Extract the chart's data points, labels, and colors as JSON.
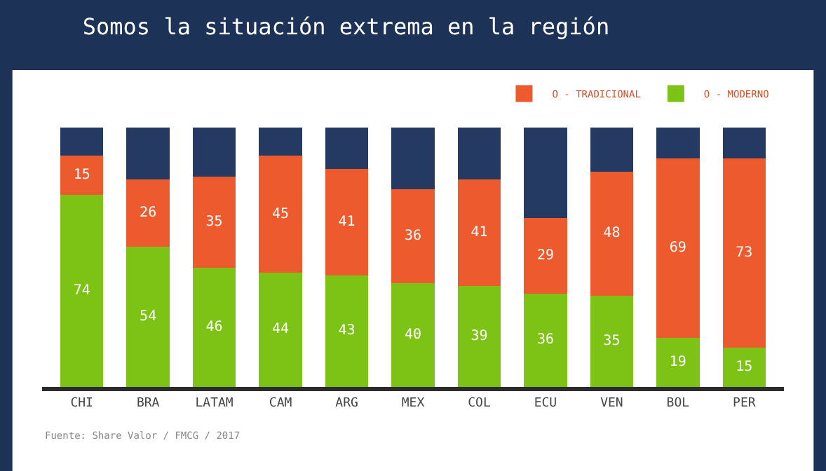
{
  "chart_data": {
    "type": "bar",
    "title": "Somos la situación extrema en la región",
    "categories": [
      "CHI",
      "BRA",
      "LATAM",
      "CAM",
      "ARG",
      "MEX",
      "COL",
      "ECU",
      "VEN",
      "BOL",
      "PER"
    ],
    "stacked": true,
    "series": [
      {
        "name": "O - MODERNO",
        "color": "#7cc315",
        "values": [
          74,
          54,
          46,
          44,
          43,
          40,
          39,
          36,
          35,
          19,
          15
        ],
        "value_labels": [
          "74",
          "54",
          "46",
          "44",
          "43",
          "40",
          "39",
          "36",
          "35",
          "19",
          "15"
        ]
      },
      {
        "name": "O - TRADICIONAL",
        "color": "#ec5a2e",
        "values": [
          15,
          26,
          35,
          45,
          41,
          36,
          41,
          29,
          48,
          69,
          73
        ],
        "value_labels": [
          "15",
          "26",
          "35",
          "45",
          "41",
          "36",
          "41",
          "29",
          "48",
          "69",
          "73"
        ]
      },
      {
        "color": "#243a63",
        "values": [
          11,
          20,
          19,
          11,
          16,
          24,
          20,
          35,
          17,
          12,
          12
        ]
      }
    ],
    "ylim": [
      0,
      122
    ],
    "tick_labels": "x",
    "legend": "top right",
    "annotations": [
      "Fuente: Share Valor / FMCG / 2017"
    ]
  }
}
